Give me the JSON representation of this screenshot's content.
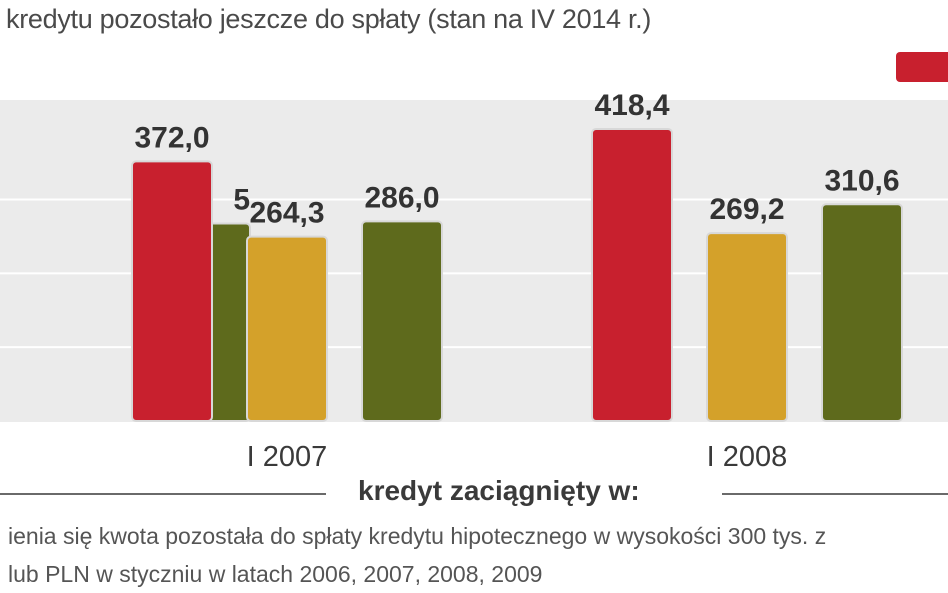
{
  "title": "kredytu pozostało jeszcze do spłaty (stan na IV 2014 r.)",
  "legend": {
    "color": "#c8202e"
  },
  "chart_data": {
    "type": "bar",
    "xlabel": "kredyt zaciągnięty w:",
    "ylim": [
      0,
      460
    ],
    "groups": [
      {
        "label": "",
        "values": [
          null,
          null,
          null
        ],
        "partial_labels": [
          "",
          "",
          "5"
        ]
      },
      {
        "label": "I 2007",
        "values": [
          372.0,
          264.3,
          286.0
        ],
        "value_labels": [
          "372,0",
          "264,3",
          "286,0"
        ]
      },
      {
        "label": "I 2008",
        "values": [
          418.4,
          269.2,
          310.6
        ],
        "value_labels": [
          "418,4",
          "269,2",
          "310,6"
        ]
      }
    ],
    "series_colors": [
      "#c8202e",
      "#d4a12a",
      "#5e6a1c"
    ],
    "partial_first_bar_value": 283
  },
  "notes": {
    "line1": "ienia się kwota pozostała do spłaty  kredytu hipotecznego w wysokości 300 tys. z",
    "line2": "lub PLN w styczniu w latach 2006, 2007, 2008, 2009"
  }
}
